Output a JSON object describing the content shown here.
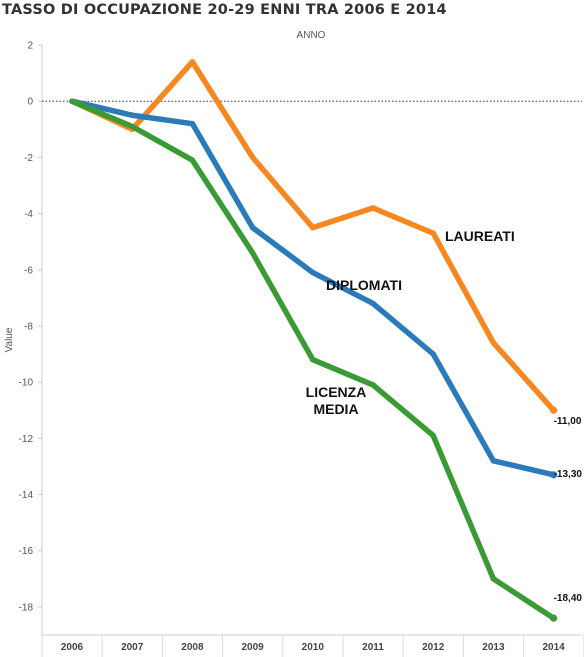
{
  "chart_data": {
    "type": "line",
    "title": "TASSO DI OCCUPAZIONE 20-29 ENNI TRA 2006 E 2014",
    "xlabel": "ANNO",
    "ylabel": "Value",
    "categories": [
      "2006",
      "2007",
      "2008",
      "2009",
      "2010",
      "2011",
      "2012",
      "2013",
      "2014"
    ],
    "ylim": [
      -19,
      2
    ],
    "yticks": [
      2,
      0,
      -2,
      -4,
      -6,
      -8,
      -10,
      -12,
      -14,
      -16,
      -18
    ],
    "reference_line": 0,
    "series": [
      {
        "name": "LAUREATI",
        "color": "#f7871f",
        "values": [
          0,
          -1.0,
          1.4,
          -2.0,
          -4.5,
          -3.8,
          -4.7,
          -8.6,
          -11.0
        ],
        "end_label": "-11,00"
      },
      {
        "name": "DIPLOMATI",
        "color": "#2b7bba",
        "values": [
          0,
          -0.5,
          -0.8,
          -4.5,
          -6.1,
          -7.2,
          -9.0,
          -12.8,
          -13.3
        ],
        "end_label": "-13,30"
      },
      {
        "name": "LICENZA MEDIA",
        "name_lines": [
          "LICENZA",
          "MEDIA"
        ],
        "color": "#3a9b35",
        "values": [
          0,
          -0.9,
          -2.1,
          -5.4,
          -9.2,
          -10.1,
          -11.9,
          -17.0,
          -18.4
        ],
        "end_label": "-18,40"
      }
    ]
  }
}
